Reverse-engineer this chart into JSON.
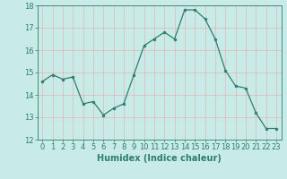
{
  "x": [
    0,
    1,
    2,
    3,
    4,
    5,
    6,
    7,
    8,
    9,
    10,
    11,
    12,
    13,
    14,
    15,
    16,
    17,
    18,
    19,
    20,
    21,
    22,
    23
  ],
  "y": [
    14.6,
    14.9,
    14.7,
    14.8,
    13.6,
    13.7,
    13.1,
    13.4,
    13.6,
    14.9,
    16.2,
    16.5,
    16.8,
    16.5,
    17.8,
    17.8,
    17.4,
    16.5,
    15.1,
    14.4,
    14.3,
    13.2,
    12.5,
    12.5
  ],
  "xlabel": "Humidex (Indice chaleur)",
  "ylim": [
    12,
    18
  ],
  "xlim_min": -0.5,
  "xlim_max": 23.5,
  "yticks": [
    12,
    13,
    14,
    15,
    16,
    17,
    18
  ],
  "xticks": [
    0,
    1,
    2,
    3,
    4,
    5,
    6,
    7,
    8,
    9,
    10,
    11,
    12,
    13,
    14,
    15,
    16,
    17,
    18,
    19,
    20,
    21,
    22,
    23
  ],
  "line_color": "#2e7d6e",
  "marker": "o",
  "marker_size": 2.0,
  "bg_color": "#c8ebe8",
  "grid_color": "#e0f0ee",
  "tick_color": "#2e7d6e",
  "label_color": "#2e7d6e",
  "xlabel_fontsize": 7,
  "tick_fontsize": 6,
  "line_width": 0.9
}
